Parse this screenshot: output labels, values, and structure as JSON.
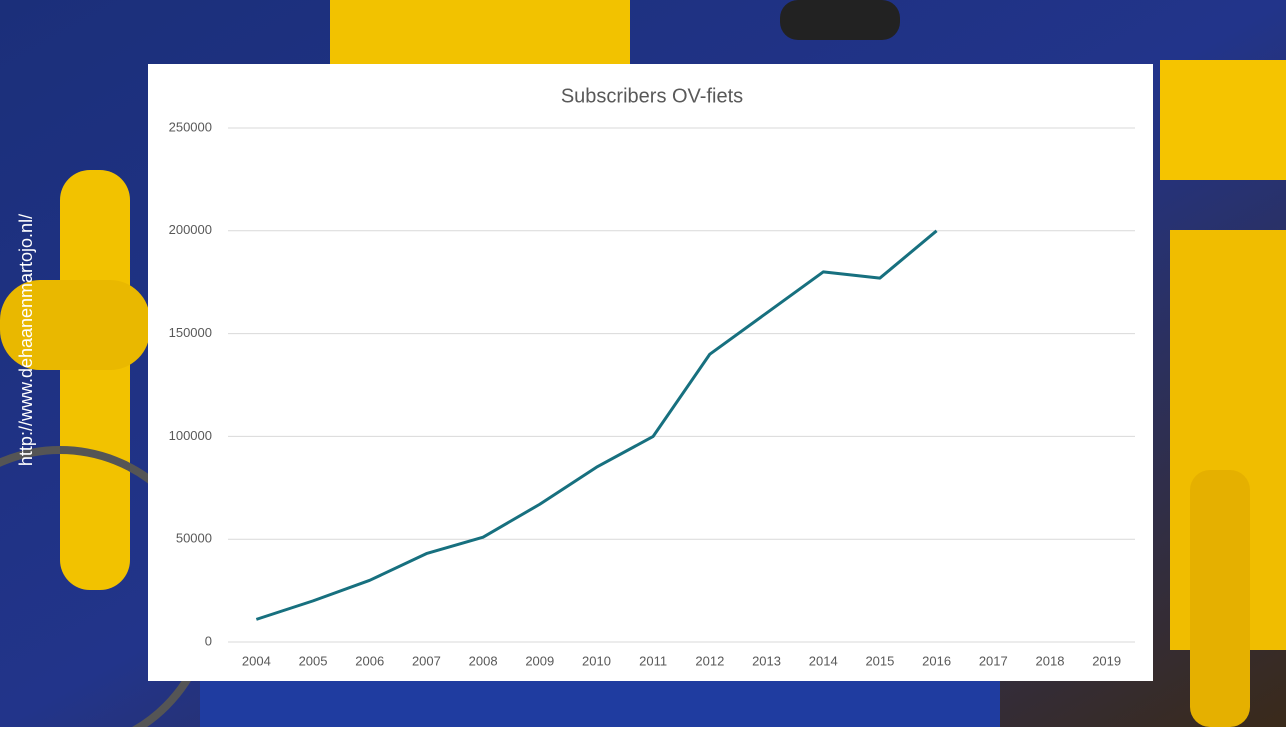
{
  "chart_data": {
    "type": "line",
    "title": "Subscribers OV-fiets",
    "source": "http://www.dehaanenmartojo.nl/",
    "categories": [
      "2004",
      "2005",
      "2006",
      "2007",
      "2008",
      "2009",
      "2010",
      "2011",
      "2012",
      "2013",
      "2014",
      "2015",
      "2016",
      "2017",
      "2018",
      "2019"
    ],
    "values": [
      11000,
      20000,
      30000,
      43000,
      51000,
      67000,
      85000,
      100000,
      140000,
      160000,
      180000,
      177000,
      200000,
      null,
      null,
      null
    ],
    "color": "#17707f",
    "ylim": [
      0,
      250000
    ],
    "yticks": [
      0,
      50000,
      100000,
      150000,
      200000,
      250000
    ],
    "grid": true
  }
}
